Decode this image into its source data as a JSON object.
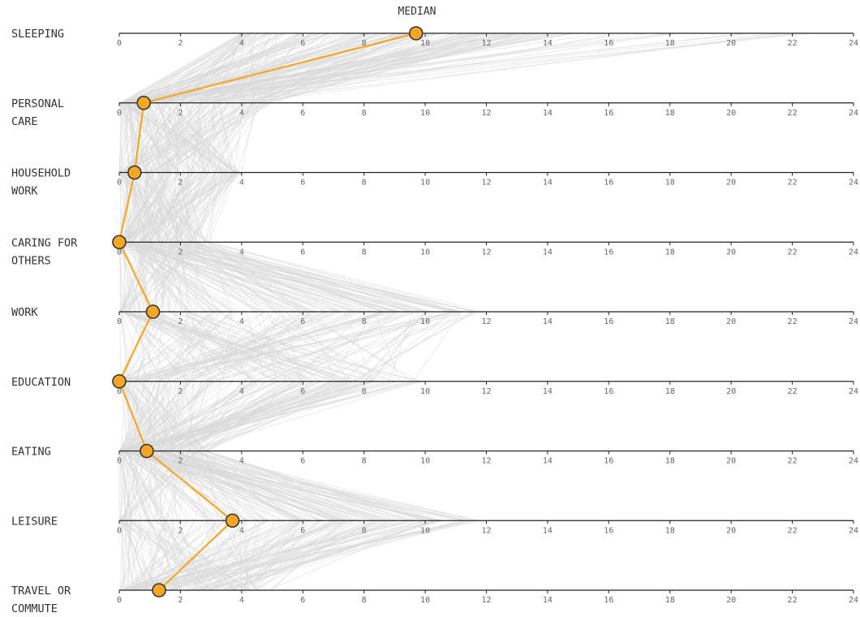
{
  "chart_data": {
    "type": "line",
    "title": "MEDIAN",
    "categories": [
      [
        "SLEEPING"
      ],
      [
        "PERSONAL",
        "CARE"
      ],
      [
        "HOUSEHOLD",
        "WORK"
      ],
      [
        "CARING FOR",
        "OTHERS"
      ],
      [
        "WORK"
      ],
      [
        "EDUCATION"
      ],
      [
        "EATING"
      ],
      [
        "LEISURE"
      ],
      [
        "TRAVEL OR",
        "COMMUTE"
      ]
    ],
    "xlim": [
      0,
      24
    ],
    "xticks": [
      "0",
      "2",
      "4",
      "6",
      "8",
      "10",
      "12",
      "14",
      "16",
      "18",
      "20",
      "22",
      "24"
    ],
    "series": [
      {
        "name": "MEDIAN",
        "values": [
          9.7,
          0.8,
          0.5,
          0.0,
          1.1,
          0.0,
          0.9,
          3.7,
          1.3
        ]
      }
    ],
    "colors": {
      "median": "#f5a623",
      "background": "#d8d8d8",
      "axis": "#222222"
    }
  }
}
